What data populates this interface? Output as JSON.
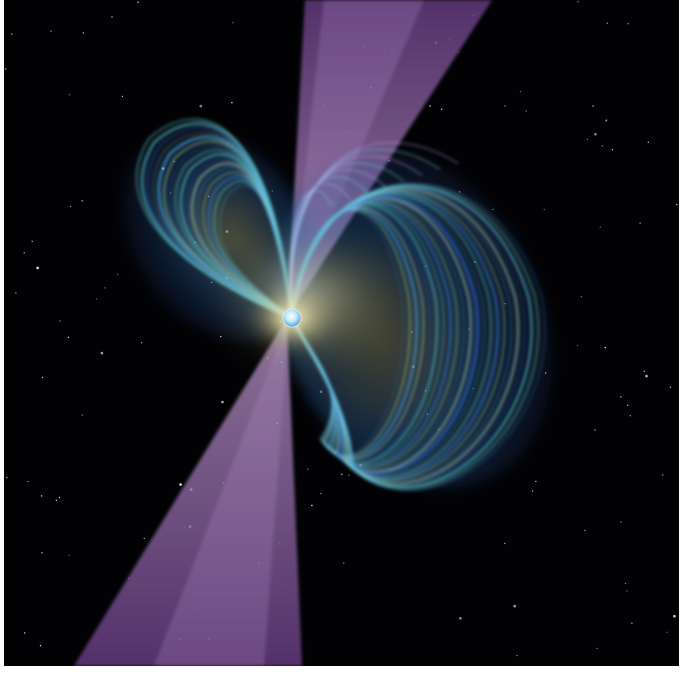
{
  "image": {
    "subject": "pulsar-magnetosphere-illustration",
    "colors": {
      "space": "#020205",
      "beam": "#8a5aa8",
      "field_cyan": "#5fd3e6",
      "field_blue": "#3a7fd0",
      "field_green": "#9fe0b0",
      "core_glow": "#fff4c0",
      "star_core": "#bfe8ff"
    },
    "elements": [
      "starfield",
      "radiation-beam-top",
      "radiation-beam-bottom",
      "magnetic-field-lobe-left",
      "magnetic-field-lobe-right",
      "neutron-star"
    ]
  }
}
